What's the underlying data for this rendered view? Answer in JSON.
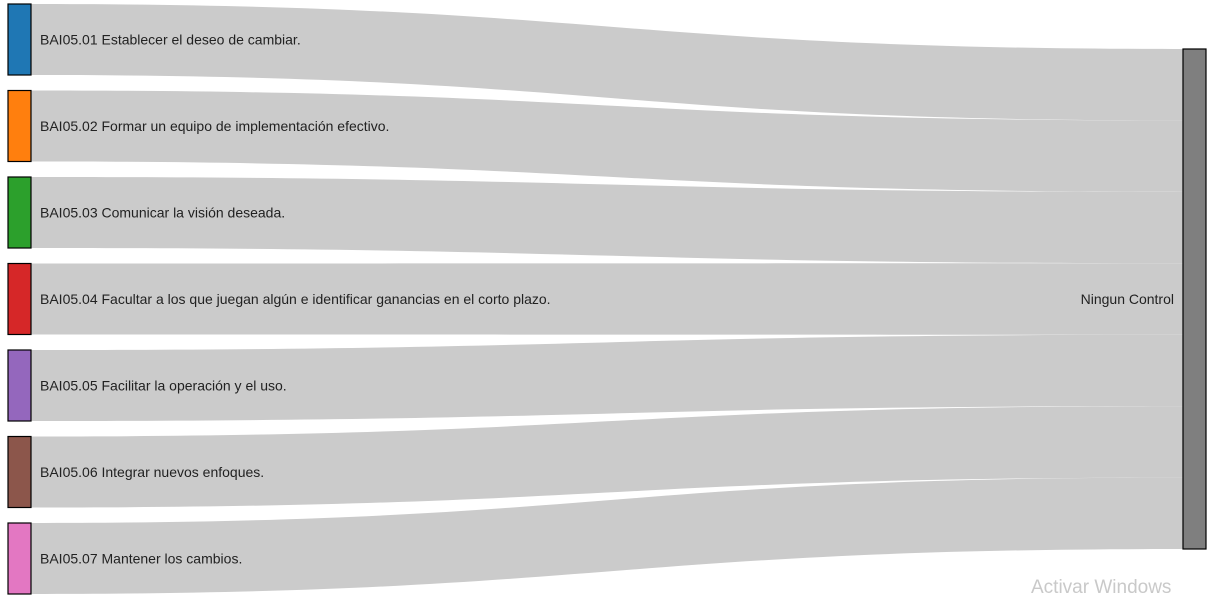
{
  "chart_data": {
    "type": "sankey",
    "sources": [
      {
        "label": "BAI05.01 Establecer el deseo de cambiar.",
        "color": "#1f77b4",
        "value": 1
      },
      {
        "label": "BAI05.02 Formar un equipo de implementación efectivo.",
        "color": "#ff7f0e",
        "value": 1
      },
      {
        "label": "BAI05.03 Comunicar la visión deseada.",
        "color": "#2ca02c",
        "value": 1
      },
      {
        "label": "BAI05.04 Facultar a los que juegan algún e identificar ganancias en el corto plazo.",
        "color": "#d62728",
        "value": 1
      },
      {
        "label": "BAI05.05 Facilitar la operación y el uso.",
        "color": "#9467bd",
        "value": 1
      },
      {
        "label": "BAI05.06 Integrar nuevos enfoques.",
        "color": "#8c564b",
        "value": 1
      },
      {
        "label": "BAI05.07 Mantener los cambios.",
        "color": "#e377c2",
        "value": 1
      }
    ],
    "target": {
      "label": "Ningun Control",
      "color": "#7f7f7f"
    },
    "link_color": "#cbcbcb"
  },
  "watermark": "Activar Windows"
}
